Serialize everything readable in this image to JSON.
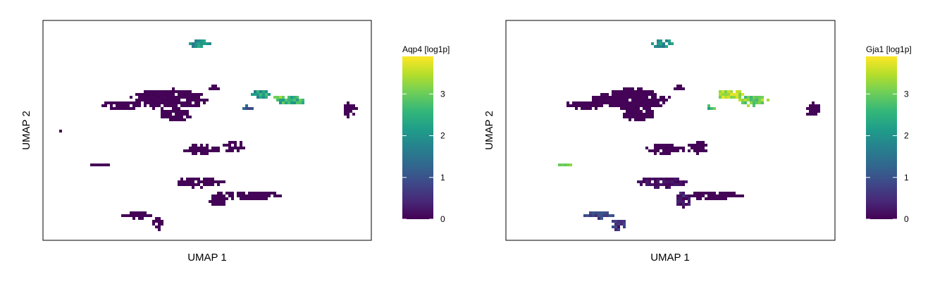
{
  "colors": {
    "viridis": [
      "#440154",
      "#482878",
      "#3e4989",
      "#31688e",
      "#26828e",
      "#1f9e89",
      "#35b779",
      "#6ece58",
      "#b5de2b",
      "#fde725"
    ]
  },
  "chart_data": [
    {
      "type": "scatter",
      "title": "",
      "xlabel": "UMAP 1",
      "ylabel": "UMAP 2",
      "xlim": [
        0,
        100
      ],
      "ylim": [
        0,
        100
      ],
      "grid": false,
      "legend": {
        "title": "Aqp4 [log1p]",
        "placement": "right",
        "range": [
          0,
          3.9
        ],
        "ticks": [
          "0",
          "1",
          "2",
          "3"
        ],
        "tick_values": [
          0,
          1,
          2,
          3
        ]
      },
      "clusters": [
        {
          "cx": 47,
          "cy": 90,
          "rx": 3.8,
          "ry": 1.8,
          "value": 2.0,
          "var": 0.5
        },
        {
          "cx": 38,
          "cy": 65,
          "rx": 12,
          "ry": 5,
          "value": 0.03,
          "var": 0.02
        },
        {
          "cx": 23,
          "cy": 62,
          "rx": 6,
          "ry": 2.2,
          "value": 0.03,
          "var": 0.02
        },
        {
          "cx": 40,
          "cy": 58,
          "rx": 5.5,
          "ry": 3,
          "value": 0.03,
          "var": 0.02
        },
        {
          "cx": 52,
          "cy": 70,
          "rx": 2.2,
          "ry": 1,
          "value": 0.03,
          "var": 0.02
        },
        {
          "cx": 66,
          "cy": 67,
          "rx": 3.5,
          "ry": 2.5,
          "value": 2.2,
          "var": 0.6
        },
        {
          "cx": 62,
          "cy": 61,
          "rx": 1.6,
          "ry": 1.4,
          "value": 1.2,
          "var": 0.4
        },
        {
          "cx": 75,
          "cy": 64,
          "rx": 4.5,
          "ry": 2.5,
          "value": 2.6,
          "var": 0.6
        },
        {
          "cx": 71,
          "cy": 66,
          "rx": 1.5,
          "ry": 1,
          "value": 3.2,
          "var": 0.4
        },
        {
          "cx": 93,
          "cy": 60,
          "rx": 2.2,
          "ry": 3.5,
          "value": 0.03,
          "var": 0.02
        },
        {
          "cx": 5,
          "cy": 50,
          "rx": 0.8,
          "ry": 0.4,
          "value": 0.03,
          "var": 0.02
        },
        {
          "cx": 48,
          "cy": 42,
          "rx": 6,
          "ry": 2.5,
          "value": 0.03,
          "var": 0.02
        },
        {
          "cx": 58,
          "cy": 43,
          "rx": 3.5,
          "ry": 3,
          "value": 0.03,
          "var": 0.02
        },
        {
          "cx": 17,
          "cy": 35,
          "rx": 2.8,
          "ry": 0.8,
          "value": 0.03,
          "var": 0.02
        },
        {
          "cx": 47,
          "cy": 27,
          "rx": 8,
          "ry": 2.5,
          "value": 0.03,
          "var": 0.02
        },
        {
          "cx": 63,
          "cy": 21,
          "rx": 9,
          "ry": 2,
          "value": 0.03,
          "var": 0.02
        },
        {
          "cx": 53,
          "cy": 19,
          "rx": 3,
          "ry": 3.5,
          "value": 0.03,
          "var": 0.02
        },
        {
          "cx": 28,
          "cy": 12,
          "rx": 5,
          "ry": 1.6,
          "value": 0.03,
          "var": 0.02
        },
        {
          "cx": 34,
          "cy": 8,
          "rx": 2.2,
          "ry": 3,
          "value": 0.03,
          "var": 0.02
        }
      ]
    },
    {
      "type": "scatter",
      "title": "",
      "xlabel": "UMAP 1",
      "ylabel": "UMAP 2",
      "xlim": [
        0,
        100
      ],
      "ylim": [
        0,
        100
      ],
      "grid": false,
      "legend": {
        "title": "Gja1 [log1p]",
        "placement": "right",
        "range": [
          0,
          3.9
        ],
        "ticks": [
          "0",
          "1",
          "2",
          "3"
        ],
        "tick_values": [
          0,
          1,
          2,
          3
        ]
      },
      "clusters": [
        {
          "cx": 47,
          "cy": 90,
          "rx": 3.8,
          "ry": 1.8,
          "value": 1.9,
          "var": 0.5
        },
        {
          "cx": 38,
          "cy": 65,
          "rx": 12,
          "ry": 5,
          "value": 0.03,
          "var": 0.02
        },
        {
          "cx": 23,
          "cy": 62,
          "rx": 6,
          "ry": 2.2,
          "value": 0.03,
          "var": 0.02
        },
        {
          "cx": 40,
          "cy": 58,
          "rx": 5.5,
          "ry": 3,
          "value": 0.03,
          "var": 0.02
        },
        {
          "cx": 52,
          "cy": 70,
          "rx": 2.2,
          "ry": 1,
          "value": 0.03,
          "var": 0.02
        },
        {
          "cx": 68,
          "cy": 67,
          "rx": 4,
          "ry": 2.5,
          "value": 3.4,
          "var": 0.4
        },
        {
          "cx": 62,
          "cy": 61,
          "rx": 1.6,
          "ry": 1.4,
          "value": 2.6,
          "var": 0.5
        },
        {
          "cx": 75,
          "cy": 64,
          "rx": 4.5,
          "ry": 2.5,
          "value": 3.1,
          "var": 0.5
        },
        {
          "cx": 93,
          "cy": 60,
          "rx": 2.2,
          "ry": 3.5,
          "value": 0.03,
          "var": 0.02
        },
        {
          "cx": 5,
          "cy": 50,
          "rx": 0.8,
          "ry": 0.4,
          "value": 0.03,
          "var": 0.02
        },
        {
          "cx": 48,
          "cy": 42,
          "rx": 6,
          "ry": 2.5,
          "value": 0.03,
          "var": 0.02
        },
        {
          "cx": 58,
          "cy": 43,
          "rx": 3.5,
          "ry": 3,
          "value": 0.03,
          "var": 0.02
        },
        {
          "cx": 17,
          "cy": 35,
          "rx": 2.8,
          "ry": 0.8,
          "value": 3.2,
          "var": 0.3
        },
        {
          "cx": 47,
          "cy": 27,
          "rx": 8,
          "ry": 2.5,
          "value": 0.15,
          "var": 0.15
        },
        {
          "cx": 63,
          "cy": 21,
          "rx": 9,
          "ry": 2,
          "value": 0.03,
          "var": 0.02
        },
        {
          "cx": 53,
          "cy": 19,
          "rx": 3,
          "ry": 3.5,
          "value": 0.3,
          "var": 0.3
        },
        {
          "cx": 28,
          "cy": 12,
          "rx": 5,
          "ry": 1.6,
          "value": 0.8,
          "var": 0.4
        },
        {
          "cx": 34,
          "cy": 8,
          "rx": 2.2,
          "ry": 3,
          "value": 0.5,
          "var": 0.4
        }
      ]
    }
  ]
}
